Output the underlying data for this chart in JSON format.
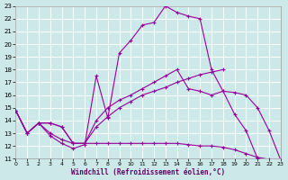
{
  "xlabel": "Windchill (Refroidissement éolien,°C)",
  "xlim": [
    0,
    23
  ],
  "ylim": [
    11,
    23
  ],
  "xticks": [
    0,
    1,
    2,
    3,
    4,
    5,
    6,
    7,
    8,
    9,
    10,
    11,
    12,
    13,
    14,
    15,
    16,
    17,
    18,
    19,
    20,
    21,
    22,
    23
  ],
  "yticks": [
    11,
    12,
    13,
    14,
    15,
    16,
    17,
    18,
    19,
    20,
    21,
    22,
    23
  ],
  "bg_color": "#cce8e8",
  "line_color": "#990099",
  "lines": [
    {
      "x": [
        0,
        1,
        2,
        3,
        4,
        5,
        6,
        7,
        8,
        9,
        10,
        11,
        12,
        13,
        14,
        15,
        16,
        17,
        18,
        19,
        20,
        21
      ],
      "y": [
        14.8,
        13.0,
        13.8,
        12.8,
        12.2,
        11.8,
        12.1,
        17.5,
        14.2,
        19.3,
        20.3,
        21.5,
        21.7,
        23.0,
        22.5,
        22.2,
        22.0,
        18.0,
        16.3,
        14.5,
        13.2,
        11.0
      ]
    },
    {
      "x": [
        0,
        1,
        2,
        3,
        4,
        5,
        6,
        7,
        8,
        9,
        10,
        11,
        12,
        13,
        14,
        15,
        16,
        17,
        18,
        19,
        20,
        21,
        22,
        23
      ],
      "y": [
        14.8,
        13.0,
        13.8,
        13.8,
        13.5,
        12.2,
        12.2,
        14.0,
        15.0,
        15.6,
        16.0,
        16.5,
        17.0,
        17.5,
        18.0,
        16.5,
        16.3,
        16.0,
        16.3,
        16.2,
        16.0,
        15.0,
        13.2,
        10.9
      ]
    },
    {
      "x": [
        0,
        1,
        2,
        3,
        4,
        5,
        6,
        7,
        8,
        9,
        10,
        11,
        12,
        13,
        14,
        15,
        16,
        17,
        18
      ],
      "y": [
        14.8,
        13.0,
        13.8,
        13.8,
        13.5,
        12.2,
        12.2,
        13.5,
        14.3,
        15.0,
        15.5,
        16.0,
        16.3,
        16.6,
        17.0,
        17.3,
        17.6,
        17.8,
        18.0
      ]
    },
    {
      "x": [
        0,
        1,
        2,
        3,
        4,
        5,
        6,
        7,
        8,
        9,
        10,
        11,
        12,
        13,
        14,
        15,
        16,
        17,
        18,
        19,
        20,
        21,
        22,
        23
      ],
      "y": [
        14.8,
        13.0,
        13.8,
        13.0,
        12.5,
        12.2,
        12.2,
        12.2,
        12.2,
        12.2,
        12.2,
        12.2,
        12.2,
        12.2,
        12.2,
        12.1,
        12.0,
        12.0,
        11.9,
        11.7,
        11.4,
        11.1,
        10.95,
        10.8
      ]
    }
  ]
}
